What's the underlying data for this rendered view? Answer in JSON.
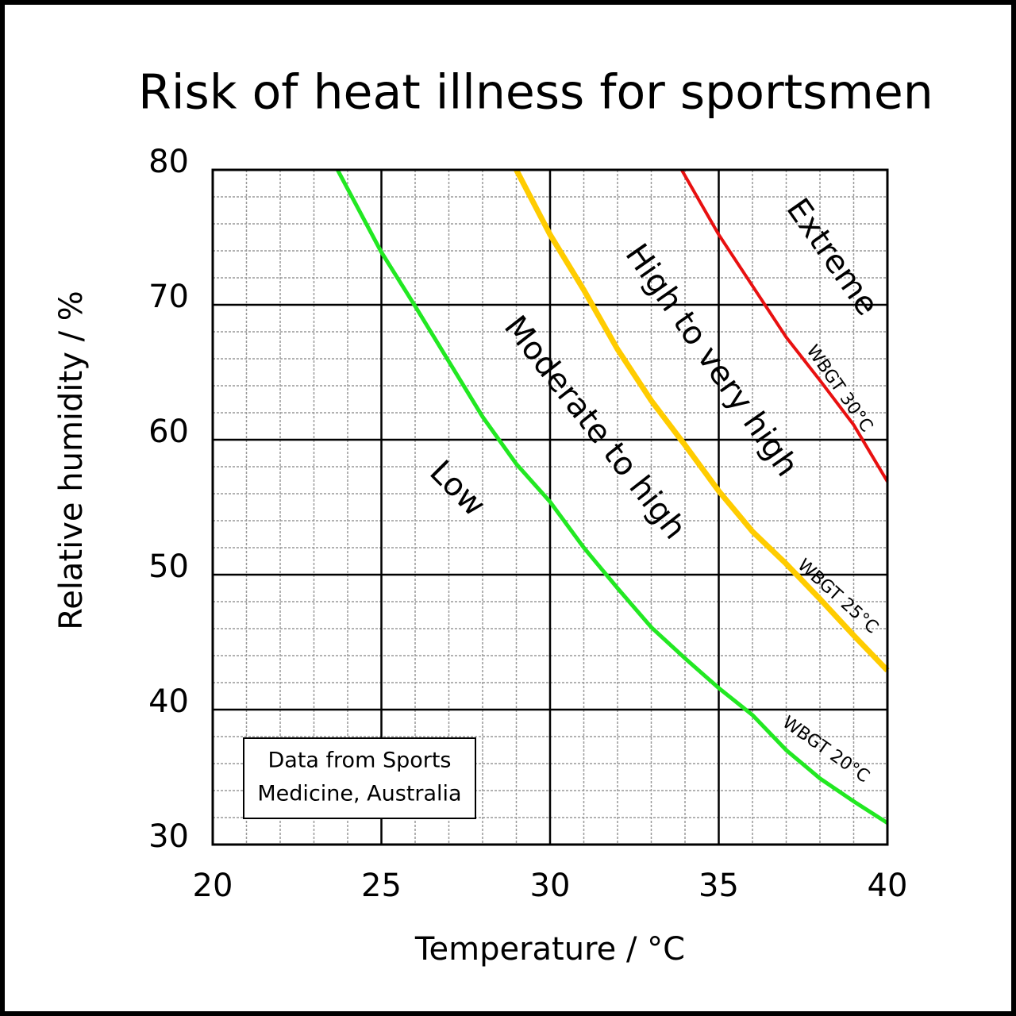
{
  "chart_data": {
    "type": "line",
    "title": "Risk of heat illness for sportsmen",
    "x_label": "Temperature / °C",
    "y_label": "Relative humidity / %",
    "xlim": [
      20,
      40
    ],
    "ylim": [
      30,
      80
    ],
    "xticks": [
      20,
      25,
      30,
      35,
      40
    ],
    "yticks": [
      30,
      40,
      50,
      60,
      70,
      80
    ],
    "xminorticks": [
      21,
      22,
      23,
      24,
      26,
      27,
      28,
      29,
      31,
      32,
      33,
      34,
      36,
      37,
      38,
      39
    ],
    "yminorticks": [
      32,
      34,
      36,
      38,
      42,
      44,
      46,
      48,
      52,
      54,
      56,
      58,
      62,
      64,
      66,
      68,
      72,
      74,
      76,
      78
    ],
    "grid": true,
    "series": [
      {
        "name": "WBGT 20°C",
        "color": "#22e822",
        "x": [
          23.7,
          25,
          26,
          27,
          28,
          29,
          30,
          31,
          32,
          33,
          34,
          35,
          36,
          37,
          38,
          39,
          40
        ],
        "values": [
          80,
          73.9,
          69.9,
          65.8,
          61.7,
          58.2,
          55.4,
          52,
          49,
          46.1,
          43.8,
          41.6,
          39.6,
          37,
          34.9,
          33.2,
          31.6
        ]
      },
      {
        "name": "WBGT 25°C",
        "color": "#ffcc00",
        "x": [
          29,
          30,
          31,
          32,
          33,
          34,
          35,
          36,
          37,
          38,
          39,
          40
        ],
        "values": [
          80,
          75.2,
          71.1,
          66.7,
          62.9,
          59.6,
          56.2,
          53.2,
          50.8,
          48.2,
          45.5,
          42.9
        ]
      },
      {
        "name": "WBGT 30°C",
        "color": "#e81010",
        "x": [
          33.9,
          35,
          36,
          37,
          38,
          39,
          40
        ],
        "values": [
          80,
          75.2,
          71.4,
          67.6,
          64.4,
          61.1,
          56.9
        ]
      }
    ],
    "regions": [
      "Low",
      "Moderate to high",
      "High to very high",
      "Extreme"
    ],
    "note": [
      "Data from Sports",
      "Medicine, Australia"
    ]
  }
}
